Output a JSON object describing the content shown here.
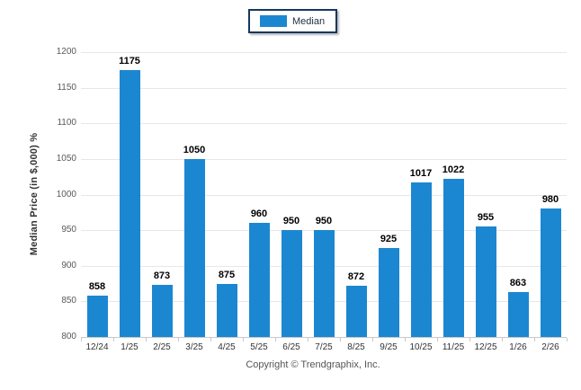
{
  "legend": {
    "label": "Median"
  },
  "footer": {
    "copyright": "Copyright © Trendgraphix, Inc."
  },
  "chart_data": {
    "type": "bar",
    "title": "",
    "categories": [
      "12/24",
      "1/25",
      "2/25",
      "3/25",
      "4/25",
      "5/25",
      "6/25",
      "7/25",
      "8/25",
      "9/25",
      "10/25",
      "11/25",
      "12/25",
      "1/26",
      "2/26"
    ],
    "series": [
      {
        "name": "Median",
        "values": [
          858,
          1175,
          873,
          1050,
          875,
          960,
          950,
          950,
          872,
          925,
          1017,
          1022,
          955,
          863,
          980
        ]
      }
    ],
    "data_labels": [
      "858",
      "1175",
      "873",
      "1050",
      "875",
      "960",
      "950",
      "950",
      "872",
      "925",
      "1017",
      "1022",
      "955",
      "863",
      "980"
    ],
    "xlabel": "",
    "ylabel": "Median Price (in $,000) %",
    "ylim": [
      800,
      1200
    ],
    "yticks": [
      800,
      850,
      900,
      950,
      1000,
      1050,
      1100,
      1150,
      1200
    ],
    "grid": "horizontal",
    "legend_position": "top-center",
    "bar_color": "#1c87d1",
    "legend_border_color": "#17375e"
  }
}
